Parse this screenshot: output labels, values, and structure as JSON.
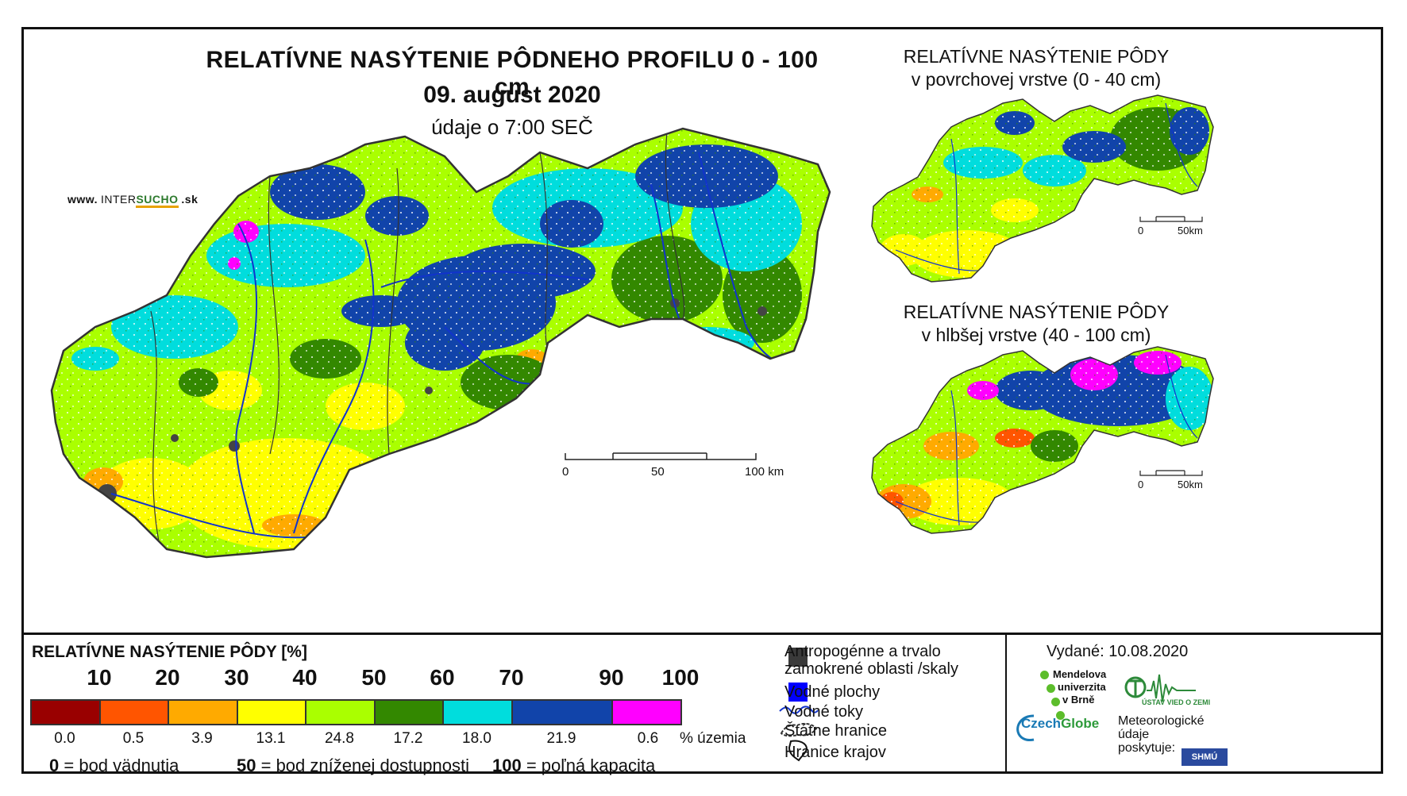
{
  "title": {
    "main": "RELATÍVNE NASÝTENIE PÔDNEHO PROFILU 0 - 100 cm",
    "date": "09. august 2020",
    "time": "údaje o 7:00 SEČ"
  },
  "website": {
    "prefix": "www.",
    "brand_a": "INTER",
    "brand_b": "SUCHO",
    "suffix": ".sk"
  },
  "inset_top": {
    "title_line1": "RELATÍVNE NASÝTENIE PÔDY",
    "title_line2": "v povrchovej vrstve (0 - 40 cm)",
    "scale_0": "0",
    "scale_end": "50km"
  },
  "inset_bottom": {
    "title_line1": "RELATÍVNE NASÝTENIE PÔDY",
    "title_line2": "v hlbšej vrstve (40 - 100 cm)",
    "scale_0": "0",
    "scale_end": "50km"
  },
  "main_scale": {
    "label_0": "0",
    "label_50": "50",
    "label_100": "100 km"
  },
  "legend": {
    "title": "RELATÍVNE NASÝTENIE PÔDY [%]",
    "thresholds": [
      "10",
      "20",
      "30",
      "40",
      "50",
      "60",
      "70",
      "90",
      "100"
    ],
    "classes": [
      {
        "color": "#990000",
        "share": "0.0"
      },
      {
        "color": "#ff5500",
        "share": "0.5"
      },
      {
        "color": "#ffaa00",
        "share": "3.9"
      },
      {
        "color": "#ffff00",
        "share": "13.1"
      },
      {
        "color": "#aaff00",
        "share": "24.8"
      },
      {
        "color": "#338800",
        "share": "17.2"
      },
      {
        "color": "#00dddd",
        "share": "18.0"
      },
      {
        "color": "#1144aa",
        "share": "21.9"
      },
      {
        "color": "#ff00ff",
        "share": "0.6"
      }
    ],
    "share_unit": "% územia",
    "note_0_num": "0",
    "note_0_text": "= bod vädnutia",
    "note_50_num": "50",
    "note_50_text": "= bod zníženej dostupnosti",
    "note_100_num": "100",
    "note_100_text": "= poľná kapacita"
  },
  "map_key": {
    "anthropogenic": "Antropogénne a trvalo",
    "anthropogenic_2": "zamokrené oblasti /skaly",
    "water_areas": "Vodné plochy",
    "rivers": "Vodné toky",
    "state_border": "Štátne hranice",
    "region_border": "Hranice krajov"
  },
  "credits": {
    "issued": "Vydané: 10.08.2020",
    "mendel_1": "Mendelova",
    "mendel_2": "univerzita",
    "mendel_3": "v Brně",
    "czech_a": "Czech",
    "czech_b": "Globe",
    "uvz": "ÚSTAV VIED O ZEMI",
    "meteo_1": "Meteorologické",
    "meteo_2": "údaje",
    "meteo_3": "poskytuje:",
    "shmu": "SHMÚ"
  }
}
